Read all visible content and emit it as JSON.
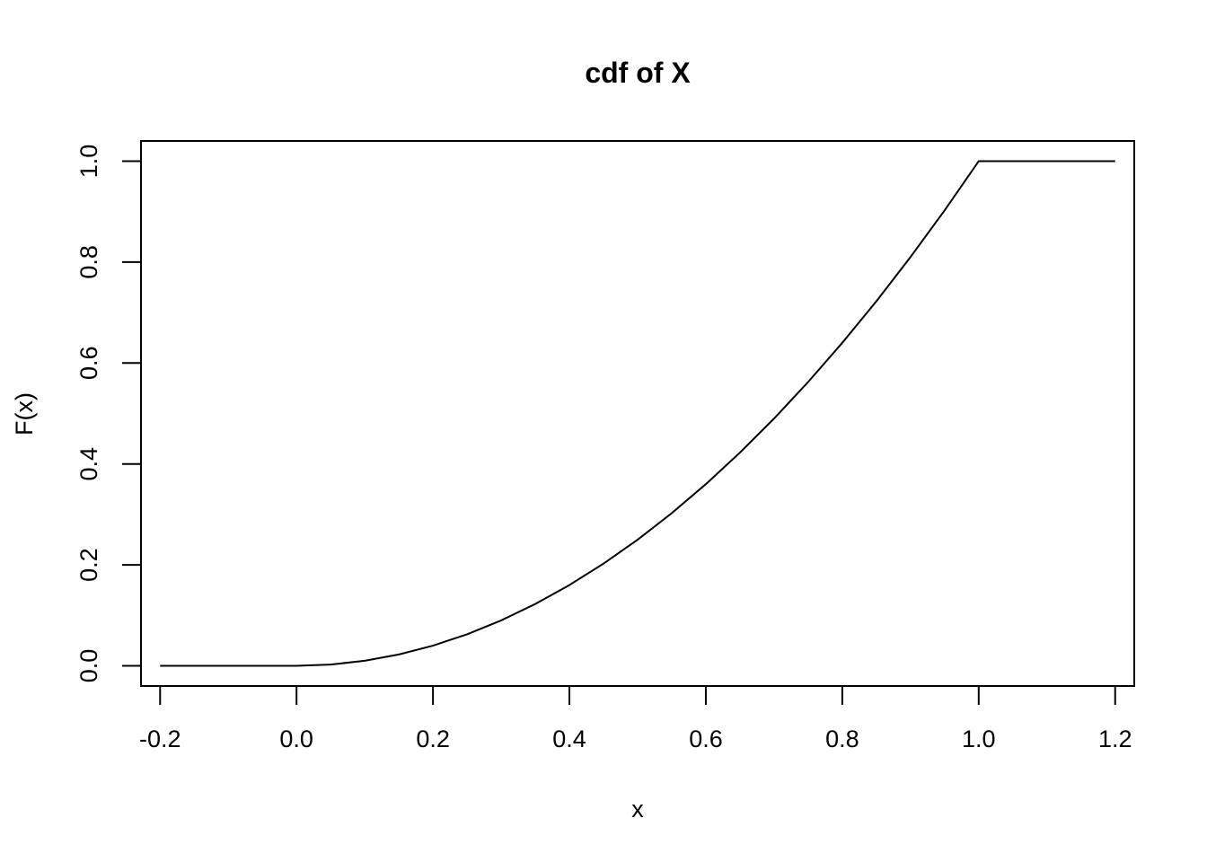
{
  "chart_data": {
    "type": "line",
    "title": "cdf of X",
    "xlabel": "x",
    "ylabel": "F(x)",
    "xlim": [
      -0.228,
      1.228
    ],
    "ylim": [
      -0.04,
      1.04
    ],
    "x_ticks": [
      -0.2,
      0.0,
      0.2,
      0.4,
      0.6,
      0.8,
      1.0,
      1.2
    ],
    "x_tick_labels": [
      "-0.2",
      "0.0",
      "0.2",
      "0.4",
      "0.6",
      "0.8",
      "1.0",
      "1.2"
    ],
    "y_ticks": [
      0.0,
      0.2,
      0.4,
      0.6,
      0.8,
      1.0
    ],
    "y_tick_labels": [
      "0.0",
      "0.2",
      "0.4",
      "0.6",
      "0.8",
      "1.0"
    ],
    "grid": false,
    "series": [
      {
        "color": "#000000",
        "x": [
          -0.2,
          -0.1,
          0.0,
          0.05,
          0.1,
          0.15,
          0.2,
          0.25,
          0.3,
          0.35,
          0.4,
          0.45,
          0.5,
          0.55,
          0.6,
          0.65,
          0.7,
          0.75,
          0.8,
          0.85,
          0.9,
          0.95,
          1.0,
          1.1,
          1.2
        ],
        "y": [
          0.0,
          0.0,
          0.0,
          0.0025,
          0.01,
          0.0225,
          0.04,
          0.0625,
          0.09,
          0.1225,
          0.16,
          0.2025,
          0.25,
          0.3025,
          0.36,
          0.4225,
          0.49,
          0.5625,
          0.64,
          0.7225,
          0.81,
          0.9025,
          1.0,
          1.0,
          1.0
        ]
      }
    ]
  }
}
